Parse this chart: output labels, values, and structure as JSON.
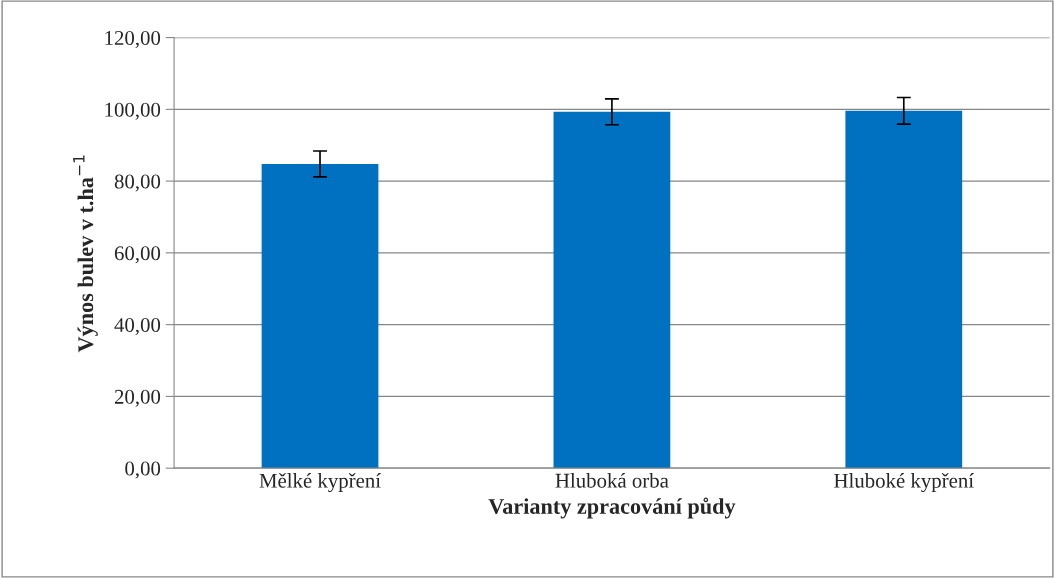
{
  "chart_data": {
    "type": "bar",
    "xlabel": "Varianty zpracování půdy",
    "ylabel": "Výnos bulev v t.ha$^{−1}$",
    "categories": [
      "Mělké kypření",
      "Hluboká orba",
      "Hluboké kypření"
    ],
    "values": [
      84.8,
      99.3,
      99.6
    ],
    "errors": [
      3.6,
      3.6,
      3.7
    ],
    "color": "#0070c0",
    "ylim": [
      0,
      120
    ],
    "yticks": [
      {
        "value": 0,
        "label": "0,00"
      },
      {
        "value": 20,
        "label": "20,00"
      },
      {
        "value": 40,
        "label": "40,00"
      },
      {
        "value": 60,
        "label": "60,00"
      },
      {
        "value": 80,
        "label": "80,00"
      },
      {
        "value": 100,
        "label": "100,00"
      },
      {
        "value": 120,
        "label": "120,00"
      }
    ],
    "grid": "y",
    "legend": false
  }
}
